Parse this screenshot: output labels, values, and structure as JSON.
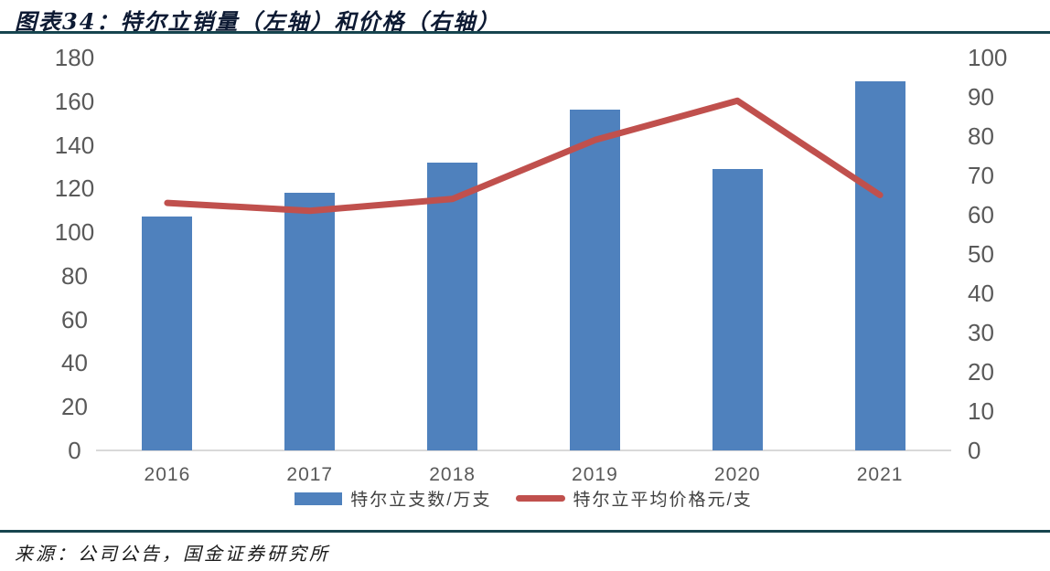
{
  "title": "图表34：特尔立销量（左轴）和价格（右轴）",
  "source": "来源：公司公告，国金证券研究所",
  "colors": {
    "bar": "#4F81BD",
    "line": "#C0504D",
    "rule": "#17454F",
    "title_text": "#0D1A33",
    "axis_text": "#595959",
    "axis_line": "#D9D9D9",
    "legend_text": "#404040"
  },
  "chart_data": {
    "type": "bar+line",
    "title": "图表34：特尔立销量（左轴）和价格（右轴）",
    "categories": [
      "2016",
      "2017",
      "2018",
      "2019",
      "2020",
      "2021"
    ],
    "series": [
      {
        "name": "特尔立支数/万支",
        "type": "bar",
        "axis": "left",
        "values": [
          107,
          118,
          132,
          156,
          129,
          169
        ]
      },
      {
        "name": "特尔立平均价格元/支",
        "type": "line",
        "axis": "right",
        "values": [
          63,
          61,
          64,
          79,
          89,
          65
        ]
      }
    ],
    "xlabel": "",
    "ylabel_left": "特尔立支数/万支",
    "ylabel_right": "特尔立平均价格元/支",
    "left_axis": {
      "min": 0,
      "max": 180,
      "step": 20,
      "ticks": [
        0,
        20,
        40,
        60,
        80,
        100,
        120,
        140,
        160,
        180
      ]
    },
    "right_axis": {
      "min": 0,
      "max": 100,
      "step": 10,
      "ticks": [
        0,
        10,
        20,
        30,
        40,
        50,
        60,
        70,
        80,
        90,
        100
      ]
    },
    "grid": false,
    "legend_position": "bottom"
  }
}
